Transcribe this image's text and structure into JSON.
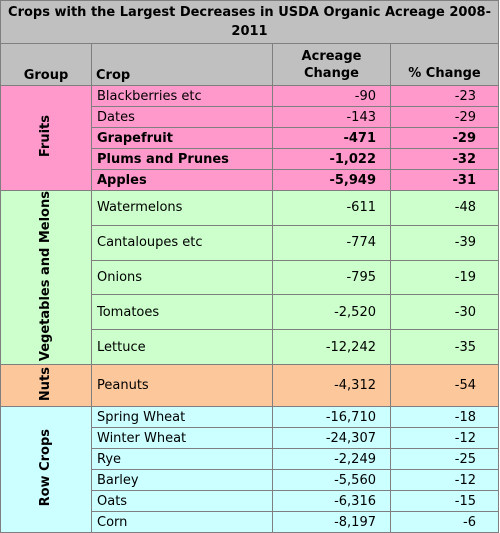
{
  "title": "Crops with the Largest Decreases in USDA Organic Acreage 2008-2011",
  "headers": {
    "group": "Group",
    "crop": "Crop",
    "acreage_change": "Acreage Change",
    "percent_change": "% Change"
  },
  "colors": {
    "header_bg": "#c0c0c0",
    "fruits_bg": "#ff99cc",
    "vegetables_bg": "#ccffcc",
    "nuts_bg": "#fcc89b",
    "row_crops_bg": "#ccffff"
  },
  "groups": [
    {
      "key": "fruits",
      "name": "Fruits",
      "color": "#ff99cc",
      "rows": [
        {
          "crop": "Blackberries etc",
          "acreage": "-90",
          "percent": "-23",
          "bold": false
        },
        {
          "crop": "Dates",
          "acreage": "-143",
          "percent": "-29",
          "bold": false
        },
        {
          "crop": "Grapefruit",
          "acreage": "-471",
          "percent": "-29",
          "bold": true
        },
        {
          "crop": "Plums and Prunes",
          "acreage": "-1,022",
          "percent": "-32",
          "bold": true
        },
        {
          "crop": "Apples",
          "acreage": "-5,949",
          "percent": "-31",
          "bold": true
        }
      ]
    },
    {
      "key": "veg",
      "name": "Vegetables and Melons",
      "color": "#ccffcc",
      "rows": [
        {
          "crop": "Watermelons",
          "acreage": "-611",
          "percent": "-48",
          "bold": false
        },
        {
          "crop": "Cantaloupes etc",
          "acreage": "-774",
          "percent": "-39",
          "bold": false
        },
        {
          "crop": "Onions",
          "acreage": "-795",
          "percent": "-19",
          "bold": false
        },
        {
          "crop": "Tomatoes",
          "acreage": "-2,520",
          "percent": "-30",
          "bold": false
        },
        {
          "crop": "Lettuce",
          "acreage": "-12,242",
          "percent": "-35",
          "bold": false
        }
      ]
    },
    {
      "key": "nuts",
      "name": "Nuts",
      "color": "#fcc89b",
      "rows": [
        {
          "crop": "Peanuts",
          "acreage": "-4,312",
          "percent": "-54",
          "bold": false
        }
      ]
    },
    {
      "key": "row",
      "name": "Row Crops",
      "color": "#ccffff",
      "rows": [
        {
          "crop": "Spring Wheat",
          "acreage": "-16,710",
          "percent": "-18",
          "bold": false
        },
        {
          "crop": "Winter Wheat",
          "acreage": "-24,307",
          "percent": "-12",
          "bold": false
        },
        {
          "crop": "Rye",
          "acreage": "-2,249",
          "percent": "-25",
          "bold": false
        },
        {
          "crop": "Barley",
          "acreage": "-5,560",
          "percent": "-12",
          "bold": false
        },
        {
          "crop": "Oats",
          "acreage": "-6,316",
          "percent": "-15",
          "bold": false
        },
        {
          "crop": "Corn",
          "acreage": "-8,197",
          "percent": "-6",
          "bold": false
        }
      ]
    }
  ]
}
